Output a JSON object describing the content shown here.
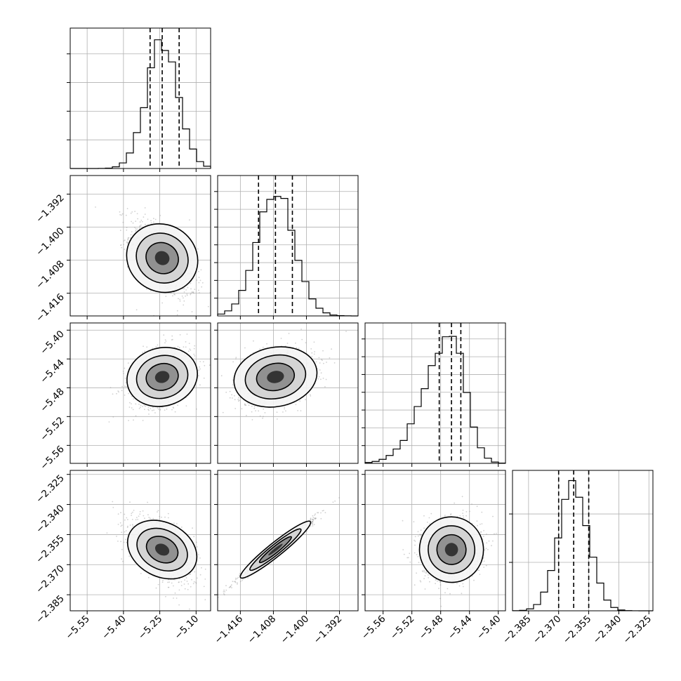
{
  "chart_data": {
    "type": "corner",
    "title": "",
    "grid": true,
    "quantiles": [
      0.16,
      0.5,
      0.84
    ],
    "parameters": [
      {
        "index": 0,
        "range": [
          -5.62,
          -5.04
        ],
        "ticks": [
          -5.55,
          -5.4,
          -5.25,
          -5.1
        ],
        "tick_labels": [
          "−5.55",
          "−5.40",
          "−5.25",
          "−5.10"
        ],
        "median": -5.24,
        "q16": -5.29,
        "q84": -5.17,
        "sigma": 0.065,
        "label": ""
      },
      {
        "index": 1,
        "range": [
          -1.4215,
          -1.3875
        ],
        "ticks": [
          -1.416,
          -1.408,
          -1.4,
          -1.392
        ],
        "tick_labels": [
          "−1.416",
          "−1.408",
          "−1.400",
          "−1.392"
        ],
        "median": -1.4075,
        "q16": -1.4116,
        "q84": -1.4034,
        "sigma": 0.0045,
        "label": ""
      },
      {
        "index": 2,
        "range": [
          -5.585,
          -5.39
        ],
        "ticks": [
          -5.56,
          -5.52,
          -5.48,
          -5.44,
          -5.4
        ],
        "tick_labels": [
          "−5.56",
          "−5.52",
          "−5.48",
          "−5.44",
          "−5.40"
        ],
        "median": -5.465,
        "q16": -5.482,
        "q84": -5.452,
        "sigma": 0.02,
        "label": ""
      },
      {
        "index": 3,
        "range": [
          -2.393,
          -2.323
        ],
        "ticks": [
          -2.385,
          -2.37,
          -2.355,
          -2.34,
          -2.325
        ],
        "tick_labels": [
          "−2.385",
          "−2.370",
          "−2.355",
          "−2.340",
          "−2.325"
        ],
        "median": -2.3625,
        "q16": -2.37,
        "q84": -2.355,
        "sigma": 0.0075,
        "label": ""
      }
    ],
    "marginal_histograms": [
      {
        "param": 0,
        "y_ticks": 4
      },
      {
        "param": 1,
        "y_ticks": 7
      },
      {
        "param": 2,
        "y_ticks": 7
      },
      {
        "param": 3,
        "y_ticks": 2
      }
    ],
    "pair_panels": [
      {
        "x_param": 0,
        "y_param": 1,
        "correlation": -0.55
      },
      {
        "x_param": 0,
        "y_param": 2,
        "correlation": 0.3
      },
      {
        "x_param": 1,
        "y_param": 2,
        "correlation": 0.25
      },
      {
        "x_param": 0,
        "y_param": 3,
        "correlation": -0.55
      },
      {
        "x_param": 1,
        "y_param": 3,
        "correlation": 0.99
      },
      {
        "x_param": 2,
        "y_param": 3,
        "correlation": 0.1
      }
    ],
    "colors": {
      "line": "#000000",
      "scatter": "#9a9a9a",
      "grid": "#b0b0b0"
    }
  }
}
